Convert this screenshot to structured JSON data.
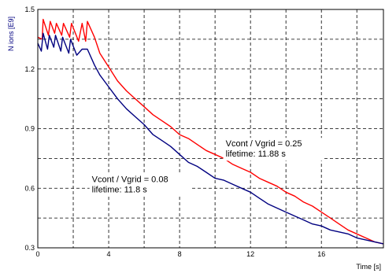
{
  "chart_data": {
    "type": "line",
    "title": "",
    "xlabel": "Time [s]",
    "ylabel": "N ions [E9]",
    "xlim": [
      0,
      19.5
    ],
    "ylim": [
      0.3,
      1.5
    ],
    "x_ticks": [
      "0",
      "4",
      "8",
      "12",
      "16"
    ],
    "y_ticks": [
      "0.3",
      "0.6",
      "0.9",
      "1.2",
      "1.5"
    ],
    "grid": "dashed",
    "legend": "none",
    "series": [
      {
        "color": "#ff0000",
        "x": [
          0,
          0.25,
          0.3,
          0.6,
          0.7,
          0.95,
          1.05,
          1.35,
          1.45,
          1.8,
          1.9,
          2.3,
          2.5,
          2.7,
          2.8,
          3.2,
          3.5,
          4,
          4.5,
          5,
          5.5,
          6,
          6.5,
          7,
          7.5,
          8,
          8.5,
          9,
          9.5,
          10,
          10.5,
          11,
          11.5,
          12,
          12.5,
          13,
          13.5,
          14,
          14.5,
          15,
          15.5,
          16,
          16.5,
          17,
          17.5,
          18,
          18.5,
          19,
          19.5
        ],
        "y": [
          1.36,
          1.35,
          1.45,
          1.37,
          1.44,
          1.38,
          1.43,
          1.37,
          1.43,
          1.36,
          1.43,
          1.34,
          1.43,
          1.34,
          1.44,
          1.36,
          1.28,
          1.21,
          1.14,
          1.09,
          1.05,
          1.01,
          0.97,
          0.94,
          0.91,
          0.87,
          0.85,
          0.82,
          0.79,
          0.77,
          0.75,
          0.72,
          0.7,
          0.68,
          0.65,
          0.63,
          0.61,
          0.58,
          0.56,
          0.53,
          0.51,
          0.48,
          0.45,
          0.42,
          0.39,
          0.37,
          0.35,
          0.33,
          0.32
        ]
      },
      {
        "color": "#000080",
        "x": [
          0,
          0.2,
          0.3,
          0.55,
          0.65,
          0.9,
          1,
          1.3,
          1.4,
          1.75,
          1.85,
          2.2,
          2.5,
          2.8,
          3.2,
          3.5,
          4,
          4.5,
          5,
          5.5,
          6,
          6.5,
          7,
          7.5,
          8,
          8.5,
          9,
          9.5,
          10,
          10.5,
          11,
          11.5,
          12,
          12.5,
          13,
          13.5,
          14,
          14.5,
          15,
          15.5,
          16,
          16.5,
          17,
          17.5,
          18,
          18.5,
          19,
          19.5
        ],
        "y": [
          1.33,
          1.29,
          1.38,
          1.3,
          1.37,
          1.31,
          1.37,
          1.29,
          1.36,
          1.28,
          1.35,
          1.27,
          1.3,
          1.3,
          1.22,
          1.17,
          1.11,
          1.05,
          1.0,
          0.96,
          0.92,
          0.87,
          0.84,
          0.81,
          0.77,
          0.73,
          0.71,
          0.68,
          0.65,
          0.64,
          0.62,
          0.6,
          0.58,
          0.55,
          0.52,
          0.5,
          0.48,
          0.46,
          0.44,
          0.42,
          0.41,
          0.39,
          0.38,
          0.37,
          0.35,
          0.34,
          0.33,
          0.32
        ]
      }
    ],
    "annotations": [
      {
        "lines": [
          "Vcont / Vgrid = 0.25",
          "lifetime: 11.88  s"
        ],
        "at": [
          10.6,
          0.81
        ]
      },
      {
        "lines": [
          "Vcont / Vgrid = 0.08",
          "lifetime: 11.8  s"
        ],
        "at": [
          3.05,
          0.63
        ]
      }
    ]
  }
}
